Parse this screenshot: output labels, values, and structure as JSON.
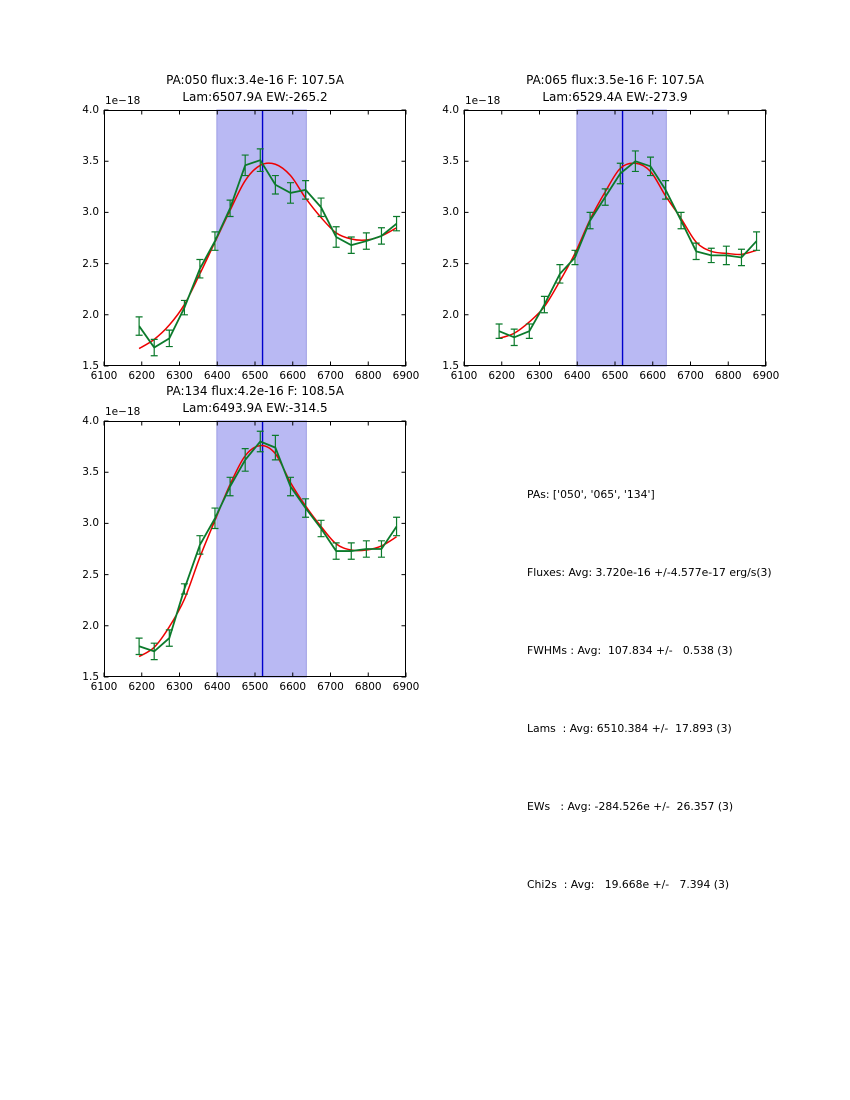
{
  "colors": {
    "background": "#ffffff",
    "band_fill": "#b9b9f3",
    "band_edge": "#9d9de4",
    "vline": "#0000cc",
    "fit_line": "#ee0000",
    "data_line": "#0b7a2b",
    "axis": "#000000",
    "text": "#000000"
  },
  "chart_data": [
    {
      "type": "line",
      "title_line1": "PA:050 flux:3.4e-16 F: 107.5A",
      "title_line2": "Lam:6507.9A EW:-265.2",
      "offset_text": "1e−18",
      "xlim": [
        6100,
        6900
      ],
      "ylim": [
        1.5,
        4.0
      ],
      "xticks": [
        6100,
        6200,
        6300,
        6400,
        6500,
        6600,
        6700,
        6800,
        6900
      ],
      "yticks": [
        1.5,
        2.0,
        2.5,
        3.0,
        3.5,
        4.0
      ],
      "grid": false,
      "legend": null,
      "shaded_band_x": [
        6399,
        6636
      ],
      "vline_x": 6520,
      "x": [
        6193,
        6233,
        6273,
        6313,
        6354,
        6394,
        6434,
        6474,
        6514,
        6554,
        6594,
        6634,
        6675,
        6715,
        6755,
        6795,
        6835,
        6875
      ],
      "series": [
        {
          "name": "spectrum",
          "color_role": "data_line",
          "values": [
            1.89,
            1.68,
            1.77,
            2.07,
            2.45,
            2.72,
            3.04,
            3.46,
            3.51,
            3.27,
            3.19,
            3.22,
            3.05,
            2.76,
            2.68,
            2.72,
            2.77,
            2.89
          ],
          "errors": [
            0.09,
            0.08,
            0.08,
            0.07,
            0.09,
            0.09,
            0.08,
            0.1,
            0.11,
            0.09,
            0.1,
            0.09,
            0.09,
            0.1,
            0.08,
            0.08,
            0.08,
            0.07
          ]
        },
        {
          "name": "gaussian-fit",
          "color_role": "fit_line",
          "values": [
            1.67,
            1.76,
            1.9,
            2.1,
            2.4,
            2.71,
            3.02,
            3.31,
            3.46,
            3.47,
            3.36,
            3.14,
            2.95,
            2.8,
            2.74,
            2.73,
            2.77,
            2.85
          ]
        }
      ]
    },
    {
      "type": "line",
      "title_line1": "PA:065 flux:3.5e-16 F: 107.5A",
      "title_line2": "Lam:6529.4A EW:-273.9",
      "offset_text": "1e−18",
      "xlim": [
        6100,
        6900
      ],
      "ylim": [
        1.5,
        4.0
      ],
      "xticks": [
        6100,
        6200,
        6300,
        6400,
        6500,
        6600,
        6700,
        6800,
        6900
      ],
      "yticks": [
        1.5,
        2.0,
        2.5,
        3.0,
        3.5,
        4.0
      ],
      "grid": false,
      "legend": null,
      "shaded_band_x": [
        6399,
        6636
      ],
      "vline_x": 6520,
      "x": [
        6193,
        6233,
        6273,
        6313,
        6354,
        6394,
        6434,
        6474,
        6514,
        6554,
        6594,
        6634,
        6675,
        6715,
        6755,
        6795,
        6835,
        6875
      ],
      "series": [
        {
          "name": "spectrum",
          "color_role": "data_line",
          "values": [
            1.84,
            1.78,
            1.84,
            2.1,
            2.4,
            2.56,
            2.92,
            3.15,
            3.38,
            3.5,
            3.45,
            3.22,
            2.92,
            2.62,
            2.58,
            2.58,
            2.56,
            2.72
          ],
          "errors": [
            0.07,
            0.08,
            0.07,
            0.08,
            0.09,
            0.07,
            0.08,
            0.08,
            0.1,
            0.1,
            0.09,
            0.09,
            0.08,
            0.08,
            0.07,
            0.09,
            0.08,
            0.09
          ]
        },
        {
          "name": "gaussian-fit",
          "color_role": "fit_line",
          "values": [
            1.77,
            1.82,
            1.93,
            2.08,
            2.33,
            2.6,
            2.93,
            3.2,
            3.43,
            3.48,
            3.4,
            3.16,
            2.94,
            2.71,
            2.62,
            2.6,
            2.59,
            2.63
          ]
        }
      ]
    },
    {
      "type": "line",
      "title_line1": "PA:134 flux:4.2e-16 F: 108.5A",
      "title_line2": "Lam:6493.9A EW:-314.5",
      "offset_text": "1e−18",
      "xlim": [
        6100,
        6900
      ],
      "ylim": [
        1.5,
        4.0
      ],
      "xticks": [
        6100,
        6200,
        6300,
        6400,
        6500,
        6600,
        6700,
        6800,
        6900
      ],
      "yticks": [
        1.5,
        2.0,
        2.5,
        3.0,
        3.5,
        4.0
      ],
      "grid": false,
      "legend": null,
      "shaded_band_x": [
        6399,
        6636
      ],
      "vline_x": 6520,
      "x": [
        6193,
        6233,
        6273,
        6313,
        6354,
        6394,
        6434,
        6474,
        6514,
        6554,
        6594,
        6634,
        6675,
        6715,
        6755,
        6795,
        6835,
        6875
      ],
      "series": [
        {
          "name": "spectrum",
          "color_role": "data_line",
          "values": [
            1.8,
            1.75,
            1.88,
            2.36,
            2.79,
            3.05,
            3.36,
            3.62,
            3.8,
            3.74,
            3.36,
            3.15,
            2.95,
            2.73,
            2.73,
            2.75,
            2.75,
            2.97
          ],
          "errors": [
            0.08,
            0.08,
            0.08,
            0.05,
            0.09,
            0.1,
            0.09,
            0.11,
            0.1,
            0.12,
            0.09,
            0.09,
            0.08,
            0.08,
            0.08,
            0.08,
            0.08,
            0.09
          ]
        },
        {
          "name": "gaussian-fit",
          "color_role": "fit_line",
          "values": [
            1.7,
            1.79,
            1.99,
            2.26,
            2.67,
            3.03,
            3.38,
            3.66,
            3.76,
            3.68,
            3.4,
            3.17,
            2.97,
            2.8,
            2.74,
            2.74,
            2.78,
            2.87
          ]
        }
      ]
    }
  ],
  "stats_panel": {
    "lines": [
      "PAs: ['050', '065', '134']",
      "Fluxes: Avg: 3.720e-16 +/-4.577e-17 erg/s(3)",
      "FWHMs : Avg:  107.834 +/-   0.538 (3)",
      "Lams  : Avg: 6510.384 +/-  17.893 (3)",
      "EWs   : Avg: -284.526e +/-  26.357 (3)",
      "Chi2s  : Avg:   19.668e +/-   7.394 (3)"
    ]
  }
}
